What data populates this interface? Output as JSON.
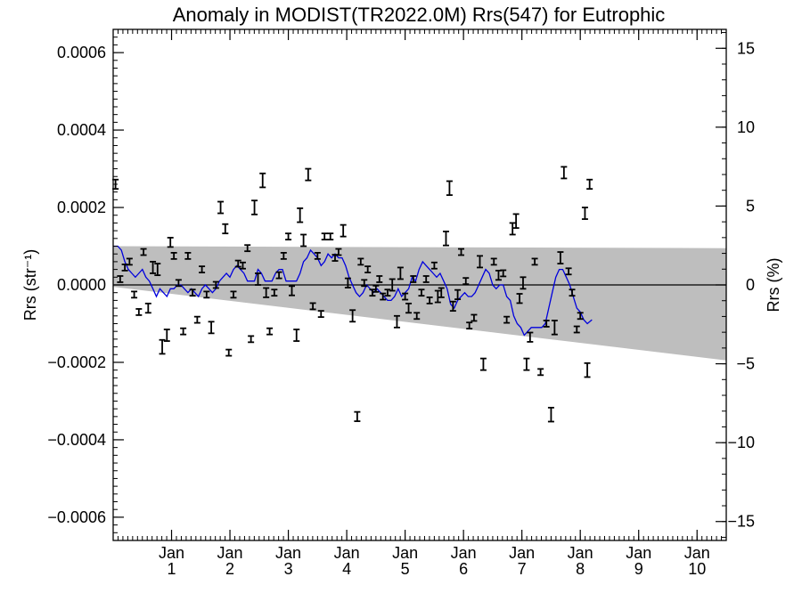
{
  "chart_data": {
    "type": "scatter",
    "title": "Anomaly in MODIST(TR2022.0M) Rrs(547) for Eutrophic",
    "ylabel_left": "Rrs (str⁻¹)",
    "ylabel_right": "Rrs (%)",
    "xlabel": "",
    "xlim": [
      0,
      10.5
    ],
    "ylim_left": [
      -0.00066,
      0.00066
    ],
    "ylim_right": [
      -16.2,
      16.2
    ],
    "x_ticks": [
      {
        "value": 1,
        "label_top": "Jan",
        "label_bottom": "1"
      },
      {
        "value": 2,
        "label_top": "Jan",
        "label_bottom": "2"
      },
      {
        "value": 3,
        "label_top": "Jan",
        "label_bottom": "3"
      },
      {
        "value": 4,
        "label_top": "Jan",
        "label_bottom": "4"
      },
      {
        "value": 5,
        "label_top": "Jan",
        "label_bottom": "5"
      },
      {
        "value": 6,
        "label_top": "Jan",
        "label_bottom": "6"
      },
      {
        "value": 7,
        "label_top": "Jan",
        "label_bottom": "7"
      },
      {
        "value": 8,
        "label_top": "Jan",
        "label_bottom": "8"
      },
      {
        "value": 9,
        "label_top": "Jan",
        "label_bottom": "9"
      },
      {
        "value": 10,
        "label_top": "Jan",
        "label_bottom": "10"
      }
    ],
    "y_ticks_left": [
      {
        "value": 0.0006,
        "label": "0.0006"
      },
      {
        "value": 0.0004,
        "label": "0.0004"
      },
      {
        "value": 0.0002,
        "label": "0.0002"
      },
      {
        "value": 0.0,
        "label": "0.0000"
      },
      {
        "value": -0.0002,
        "label": "−0.0002"
      },
      {
        "value": -0.0004,
        "label": "−0.0004"
      },
      {
        "value": -0.0006,
        "label": "−0.0006"
      }
    ],
    "y_ticks_right": [
      {
        "value": 15,
        "label": "15"
      },
      {
        "value": 10,
        "label": "10"
      },
      {
        "value": 5,
        "label": "5"
      },
      {
        "value": 0,
        "label": "0"
      },
      {
        "value": -5,
        "label": "−5"
      },
      {
        "value": -10,
        "label": "−10"
      },
      {
        "value": -15,
        "label": "−15"
      }
    ],
    "reference_band": {
      "x": [
        0,
        10.5
      ],
      "upper": [
        0.0001,
        9.5e-05
      ],
      "lower": [
        -5e-06,
        -0.000195
      ],
      "color": "#bebebe"
    },
    "zero_line": 0,
    "points": [
      {
        "x": 0.04,
        "y": 0.00026,
        "err": 1.2e-05
      },
      {
        "x": 0.12,
        "y": 1.5e-05,
        "err": 8e-06
      },
      {
        "x": 0.2,
        "y": 4.5e-05,
        "err": 8e-06
      },
      {
        "x": 0.28,
        "y": 6e-05,
        "err": 8e-06
      },
      {
        "x": 0.36,
        "y": -2.5e-05,
        "err": 8e-06
      },
      {
        "x": 0.44,
        "y": -7e-05,
        "err": 8e-06
      },
      {
        "x": 0.52,
        "y": 8.5e-05,
        "err": 8e-06
      },
      {
        "x": 0.6,
        "y": -6e-05,
        "err": 1.2e-05
      },
      {
        "x": 0.68,
        "y": 4.5e-05,
        "err": 1.5e-05
      },
      {
        "x": 0.76,
        "y": 4e-05,
        "err": 1.5e-05
      },
      {
        "x": 0.84,
        "y": -0.00016,
        "err": 1.8e-05
      },
      {
        "x": 0.92,
        "y": -0.00013,
        "err": 1.5e-05
      },
      {
        "x": 0.98,
        "y": 0.00011,
        "err": 1.2e-05
      },
      {
        "x": 1.04,
        "y": 7.5e-05,
        "err": 8e-06
      },
      {
        "x": 1.12,
        "y": 5e-06,
        "err": 8e-06
      },
      {
        "x": 1.2,
        "y": -0.00012,
        "err": 8e-06
      },
      {
        "x": 1.28,
        "y": 7.5e-05,
        "err": 8e-06
      },
      {
        "x": 1.36,
        "y": -2e-05,
        "err": 8e-06
      },
      {
        "x": 1.44,
        "y": -9e-05,
        "err": 8e-06
      },
      {
        "x": 1.52,
        "y": 4e-05,
        "err": 8e-06
      },
      {
        "x": 1.6,
        "y": -2.5e-05,
        "err": 8e-06
      },
      {
        "x": 1.68,
        "y": -0.00011,
        "err": 1.5e-05
      },
      {
        "x": 1.76,
        "y": 0.0,
        "err": 8e-06
      },
      {
        "x": 1.84,
        "y": 0.0002,
        "err": 1.5e-05
      },
      {
        "x": 1.92,
        "y": 0.000145,
        "err": 1.2e-05
      },
      {
        "x": 1.98,
        "y": -0.000175,
        "err": 8e-06
      },
      {
        "x": 2.06,
        "y": -2.5e-05,
        "err": 8e-06
      },
      {
        "x": 2.14,
        "y": 5.5e-05,
        "err": 8e-06
      },
      {
        "x": 2.22,
        "y": 5e-05,
        "err": 8e-06
      },
      {
        "x": 2.3,
        "y": 9.5e-05,
        "err": 8e-06
      },
      {
        "x": 2.36,
        "y": -0.00014,
        "err": 8e-06
      },
      {
        "x": 2.42,
        "y": 0.0002,
        "err": 1.8e-05
      },
      {
        "x": 2.48,
        "y": 1.5e-05,
        "err": 1.5e-05
      },
      {
        "x": 2.56,
        "y": 0.00027,
        "err": 1.8e-05
      },
      {
        "x": 2.62,
        "y": -2e-05,
        "err": 1.2e-05
      },
      {
        "x": 2.68,
        "y": -0.00012,
        "err": 8e-06
      },
      {
        "x": 2.76,
        "y": -2e-05,
        "err": 8e-06
      },
      {
        "x": 2.84,
        "y": 2.5e-05,
        "err": 8e-06
      },
      {
        "x": 2.92,
        "y": 7.5e-05,
        "err": 8e-06
      },
      {
        "x": 3.0,
        "y": 0.000125,
        "err": 8e-06
      },
      {
        "x": 3.06,
        "y": -1.5e-05,
        "err": 1.2e-05
      },
      {
        "x": 3.14,
        "y": -0.00013,
        "err": 1.5e-05
      },
      {
        "x": 3.2,
        "y": 0.00018,
        "err": 1.8e-05
      },
      {
        "x": 3.26,
        "y": 0.000115,
        "err": 1.5e-05
      },
      {
        "x": 3.34,
        "y": 0.000285,
        "err": 1.5e-05
      },
      {
        "x": 3.42,
        "y": -5.5e-05,
        "err": 8e-06
      },
      {
        "x": 3.5,
        "y": 7.5e-05,
        "err": 8e-06
      },
      {
        "x": 3.56,
        "y": -7.5e-05,
        "err": 8e-06
      },
      {
        "x": 3.62,
        "y": 0.000125,
        "err": 8e-06
      },
      {
        "x": 3.72,
        "y": 0.000125,
        "err": 8e-06
      },
      {
        "x": 3.8,
        "y": 7e-05,
        "err": 8e-06
      },
      {
        "x": 3.86,
        "y": 8.5e-05,
        "err": 8e-06
      },
      {
        "x": 3.94,
        "y": 0.00014,
        "err": 1.5e-05
      },
      {
        "x": 4.02,
        "y": 5e-06,
        "err": 1.2e-05
      },
      {
        "x": 4.1,
        "y": -8e-05,
        "err": 1.5e-05
      },
      {
        "x": 4.18,
        "y": -0.00034,
        "err": 1.2e-05
      },
      {
        "x": 4.24,
        "y": 6e-05,
        "err": 8e-06
      },
      {
        "x": 4.3,
        "y": 5e-06,
        "err": 8e-06
      },
      {
        "x": 4.36,
        "y": 4e-05,
        "err": 8e-06
      },
      {
        "x": 4.44,
        "y": -2e-05,
        "err": 8e-06
      },
      {
        "x": 4.5,
        "y": -1e-05,
        "err": 8e-06
      },
      {
        "x": 4.56,
        "y": 1.5e-05,
        "err": 8e-06
      },
      {
        "x": 4.62,
        "y": -3e-05,
        "err": 8e-06
      },
      {
        "x": 4.7,
        "y": -2e-05,
        "err": 8e-06
      },
      {
        "x": 4.78,
        "y": 0.0,
        "err": 1.5e-05
      },
      {
        "x": 4.86,
        "y": -9.5e-05,
        "err": 1.5e-05
      },
      {
        "x": 4.92,
        "y": 3e-05,
        "err": 1.5e-05
      },
      {
        "x": 5.0,
        "y": -3e-05,
        "err": 8e-06
      },
      {
        "x": 5.06,
        "y": -6e-05,
        "err": 1.2e-05
      },
      {
        "x": 5.14,
        "y": 1.5e-05,
        "err": 8e-06
      },
      {
        "x": 5.2,
        "y": -8e-05,
        "err": 8e-06
      },
      {
        "x": 5.28,
        "y": -2e-05,
        "err": 8e-06
      },
      {
        "x": 5.36,
        "y": 1.5e-05,
        "err": 8e-06
      },
      {
        "x": 5.42,
        "y": -4e-05,
        "err": 8e-06
      },
      {
        "x": 5.5,
        "y": 5e-05,
        "err": 8e-06
      },
      {
        "x": 5.56,
        "y": -3e-05,
        "err": 1.5e-05
      },
      {
        "x": 5.62,
        "y": -2e-05,
        "err": 1.2e-05
      },
      {
        "x": 5.7,
        "y": 0.00012,
        "err": 1.8e-05
      },
      {
        "x": 5.76,
        "y": 0.00025,
        "err": 1.8e-05
      },
      {
        "x": 5.82,
        "y": -5.5e-05,
        "err": 1.2e-05
      },
      {
        "x": 5.9,
        "y": -2.5e-05,
        "err": 1.2e-05
      },
      {
        "x": 5.96,
        "y": 8.5e-05,
        "err": 8e-06
      },
      {
        "x": 6.04,
        "y": 1e-05,
        "err": 8e-06
      },
      {
        "x": 6.1,
        "y": -0.000105,
        "err": 8e-06
      },
      {
        "x": 6.18,
        "y": -8.5e-05,
        "err": 8e-06
      },
      {
        "x": 6.28,
        "y": 6e-05,
        "err": 1.5e-05
      },
      {
        "x": 6.34,
        "y": -0.000205,
        "err": 1.5e-05
      },
      {
        "x": 6.52,
        "y": 6e-05,
        "err": 8e-06
      },
      {
        "x": 6.6,
        "y": 2.5e-05,
        "err": 1.2e-05
      },
      {
        "x": 6.68,
        "y": 3e-05,
        "err": 8e-06
      },
      {
        "x": 6.74,
        "y": -9e-05,
        "err": 8e-06
      },
      {
        "x": 6.84,
        "y": 0.000145,
        "err": 1.5e-05
      },
      {
        "x": 6.9,
        "y": 0.000165,
        "err": 1.8e-05
      },
      {
        "x": 6.96,
        "y": -3.5e-05,
        "err": 1.2e-05
      },
      {
        "x": 7.02,
        "y": 5e-06,
        "err": 1.5e-05
      },
      {
        "x": 7.08,
        "y": -0.000205,
        "err": 1.5e-05
      },
      {
        "x": 7.14,
        "y": -0.000135,
        "err": 1.2e-05
      },
      {
        "x": 7.22,
        "y": 6e-05,
        "err": 8e-06
      },
      {
        "x": 7.32,
        "y": -0.000225,
        "err": 8e-06
      },
      {
        "x": 7.42,
        "y": -0.0001,
        "err": 8e-06
      },
      {
        "x": 7.5,
        "y": -0.000335,
        "err": 1.8e-05
      },
      {
        "x": 7.56,
        "y": -0.00011,
        "err": 1.8e-05
      },
      {
        "x": 7.66,
        "y": 7e-05,
        "err": 1.5e-05
      },
      {
        "x": 7.72,
        "y": 0.00029,
        "err": 1.5e-05
      },
      {
        "x": 7.8,
        "y": 3.5e-05,
        "err": 8e-06
      },
      {
        "x": 7.86,
        "y": -2e-05,
        "err": 8e-06
      },
      {
        "x": 7.94,
        "y": -0.000115,
        "err": 8e-06
      },
      {
        "x": 8.0,
        "y": -8e-05,
        "err": 8e-06
      },
      {
        "x": 8.08,
        "y": 0.000185,
        "err": 1.5e-05
      },
      {
        "x": 8.12,
        "y": -0.00022,
        "err": 1.8e-05
      },
      {
        "x": 8.16,
        "y": 0.00026,
        "err": 1.2e-05
      }
    ],
    "points_color": "#000000",
    "smoothed_line": {
      "color": "#0000dd",
      "x": [
        0.0,
        0.08,
        0.14,
        0.2,
        0.26,
        0.32,
        0.38,
        0.44,
        0.5,
        0.56,
        0.62,
        0.68,
        0.74,
        0.8,
        0.86,
        0.92,
        0.98,
        1.04,
        1.1,
        1.16,
        1.22,
        1.28,
        1.34,
        1.4,
        1.46,
        1.52,
        1.58,
        1.64,
        1.7,
        1.76,
        1.82,
        1.88,
        1.94,
        2.0,
        2.06,
        2.12,
        2.18,
        2.24,
        2.3,
        2.36,
        2.42,
        2.48,
        2.54,
        2.6,
        2.66,
        2.72,
        2.78,
        2.84,
        2.9,
        2.96,
        3.02,
        3.08,
        3.14,
        3.2,
        3.26,
        3.32,
        3.38,
        3.44,
        3.5,
        3.56,
        3.62,
        3.68,
        3.74,
        3.8,
        3.86,
        3.92,
        3.98,
        4.04,
        4.1,
        4.16,
        4.22,
        4.28,
        4.34,
        4.4,
        4.46,
        4.52,
        4.58,
        4.64,
        4.7,
        4.76,
        4.82,
        4.88,
        4.94,
        5.0,
        5.06,
        5.12,
        5.18,
        5.24,
        5.3,
        5.36,
        5.42,
        5.48,
        5.54,
        5.6,
        5.66,
        5.72,
        5.78,
        5.84,
        5.9,
        5.96,
        6.02,
        6.08,
        6.14,
        6.2,
        6.26,
        6.32,
        6.38,
        6.44,
        6.5,
        6.56,
        6.62,
        6.68,
        6.74,
        6.8,
        6.86,
        6.92,
        6.98,
        7.04,
        7.1,
        7.16,
        7.22,
        7.28,
        7.34,
        7.4,
        7.46,
        7.52,
        7.58,
        7.64,
        7.7,
        7.76,
        7.82,
        7.88,
        7.94,
        8.0,
        8.06,
        8.12,
        8.2
      ],
      "y": [
        0.0001,
        0.0001,
        9e-05,
        6e-05,
        4e-05,
        3e-05,
        2e-05,
        3e-05,
        4e-05,
        2e-05,
        1e-05,
        -1e-05,
        -3e-05,
        -1e-05,
        -2e-05,
        -3e-05,
        -1e-05,
        -1e-05,
        0.0,
        0.0,
        -1e-05,
        -2e-05,
        -1e-05,
        -2e-05,
        -3e-05,
        -1e-05,
        0.0,
        -1e-05,
        -2e-05,
        -1e-05,
        1e-05,
        2e-05,
        3e-05,
        2e-05,
        4e-05,
        5e-05,
        4e-05,
        3e-05,
        1e-05,
        1e-05,
        1e-05,
        4e-05,
        3e-05,
        1e-05,
        1e-05,
        1e-05,
        3e-05,
        4e-05,
        4e-05,
        1e-05,
        1e-05,
        1e-05,
        1e-05,
        3e-05,
        6e-05,
        7e-05,
        9e-05,
        8e-05,
        7e-05,
        5e-05,
        6e-05,
        8e-05,
        7e-05,
        8e-05,
        7e-05,
        7e-05,
        5e-05,
        2e-05,
        0.0,
        -2e-05,
        -3e-05,
        -2e-05,
        0.0,
        -1e-05,
        -2e-05,
        -1e-05,
        -2e-05,
        -3e-05,
        -4e-05,
        -4e-05,
        -3e-05,
        -1e-05,
        -3e-05,
        -2e-05,
        -1e-05,
        2e-05,
        1e-05,
        4e-05,
        6e-05,
        5e-05,
        4e-05,
        3e-05,
        2e-05,
        3e-05,
        1e-05,
        -1e-05,
        -5e-05,
        -6e-05,
        -4e-05,
        -3e-05,
        -2e-05,
        -3e-05,
        -3e-05,
        -2e-05,
        0.0,
        2e-05,
        4e-05,
        3e-05,
        0.0,
        -1e-05,
        0.0,
        0.0,
        -3e-05,
        -4e-05,
        -8e-05,
        -0.0001,
        -0.00011,
        -0.00013,
        -0.00012,
        -0.00011,
        -0.00011,
        -0.00011,
        -0.00011,
        -0.0001,
        -6e-05,
        -2e-05,
        2e-05,
        4e-05,
        4e-05,
        2e-05,
        0.0,
        -3e-05,
        -6e-05,
        -7e-05,
        -9e-05,
        -0.0001,
        -9e-05
      ]
    }
  }
}
